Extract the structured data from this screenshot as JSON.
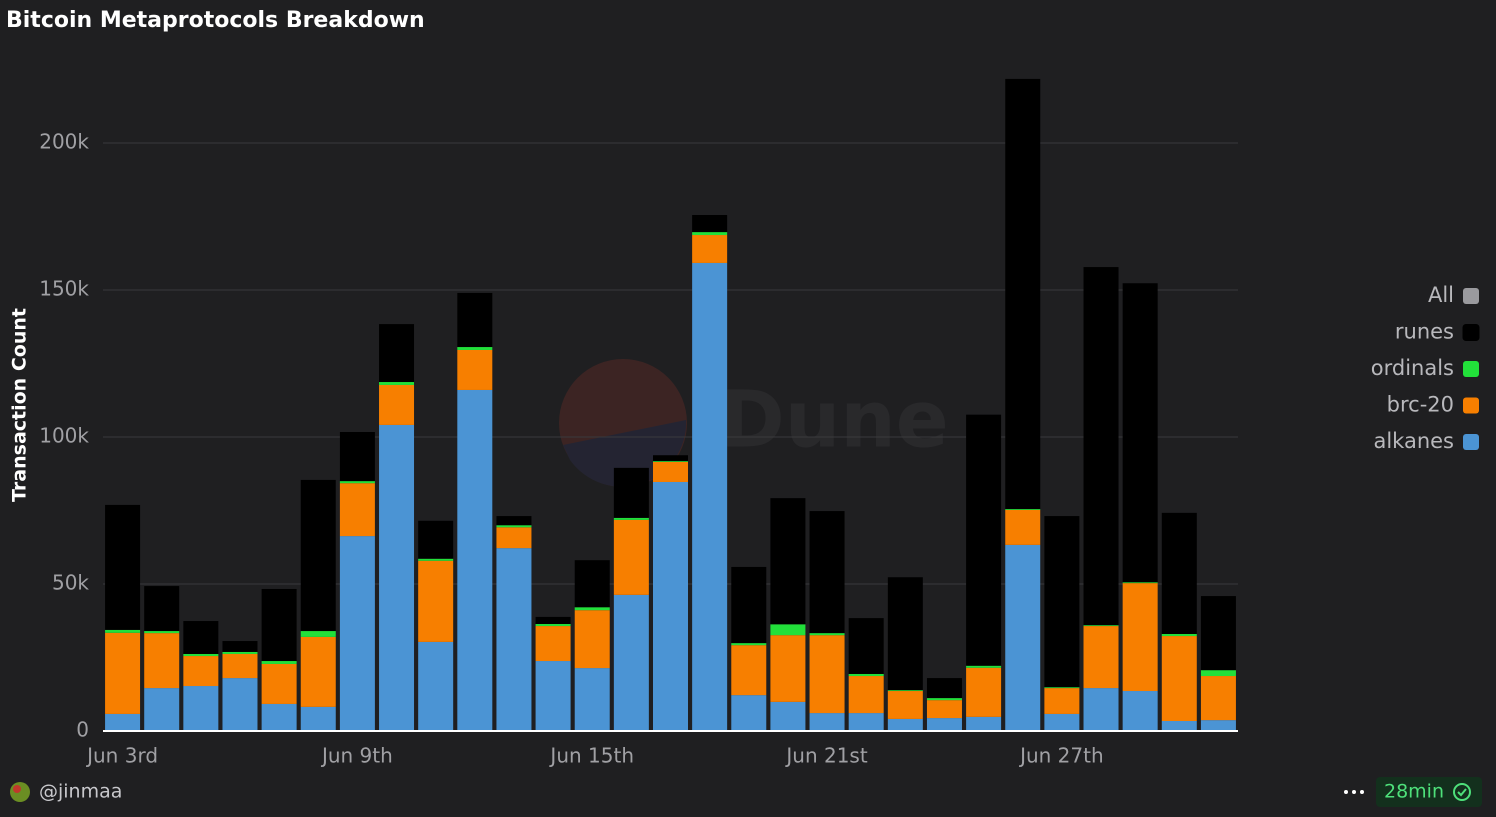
{
  "chart_data": {
    "type": "stacked_bar",
    "title": "Bitcoin Metaprotocols Breakdown",
    "y_label": "Transaction Count",
    "legend_all": {
      "name": "All",
      "color": "#9a9a9e"
    },
    "legend_position": "right",
    "categories": [
      "Jun 3rd",
      null,
      null,
      null,
      null,
      null,
      "Jun 9th",
      null,
      null,
      null,
      null,
      null,
      "Jun 15th",
      null,
      null,
      null,
      null,
      null,
      "Jun 21st",
      null,
      null,
      null,
      null,
      null,
      "Jun 27th",
      null,
      null,
      null,
      null
    ],
    "series": [
      {
        "name": "runes",
        "color": "#000000",
        "values": [
          42500,
          15300,
          11200,
          3700,
          24500,
          51400,
          16700,
          19700,
          12900,
          18400,
          3100,
          2400,
          16000,
          17000,
          2000,
          5800,
          25900,
          42900,
          41500,
          19000,
          38400,
          6800,
          85400,
          146300,
          58200,
          121800,
          101700,
          41200,
          25200
        ]
      },
      {
        "name": "ordinals",
        "color": "#22e03a",
        "values": [
          1000,
          700,
          700,
          700,
          1000,
          2000,
          700,
          1000,
          700,
          1000,
          700,
          700,
          1000,
          700,
          300,
          1000,
          700,
          3700,
          700,
          700,
          300,
          700,
          700,
          300,
          300,
          300,
          300,
          700,
          2000
        ]
      },
      {
        "name": "brc-20",
        "color": "#f77f00",
        "values": [
          27600,
          18700,
          10200,
          8200,
          13600,
          23800,
          18000,
          13600,
          27600,
          13600,
          7100,
          11900,
          19700,
          25500,
          6800,
          9500,
          17000,
          22700,
          26500,
          12600,
          9500,
          6100,
          16700,
          11900,
          8800,
          21100,
          36700,
          28900,
          15000
        ]
      },
      {
        "name": "alkanes",
        "color": "#4b94d4",
        "values": [
          5800,
          14600,
          15300,
          18000,
          9200,
          8200,
          66300,
          104100,
          30300,
          116000,
          62200,
          23800,
          21400,
          46300,
          84700,
          159200,
          12200,
          9900,
          6100,
          6100,
          4100,
          4400,
          4800,
          63300,
          5800,
          14600,
          13600,
          3400,
          3700
        ]
      }
    ],
    "ylim": [
      0,
      225000
    ],
    "yticks": [
      0,
      {
        "value": 50000,
        "label": "50k"
      },
      {
        "value": 100000,
        "label": "100k"
      },
      {
        "value": 150000,
        "label": "150k"
      },
      {
        "value": 200000,
        "label": "200k"
      }
    ],
    "grid": true
  },
  "footer": {
    "author": "@jinmaa",
    "refresh": "28min"
  },
  "watermark": "Dune"
}
